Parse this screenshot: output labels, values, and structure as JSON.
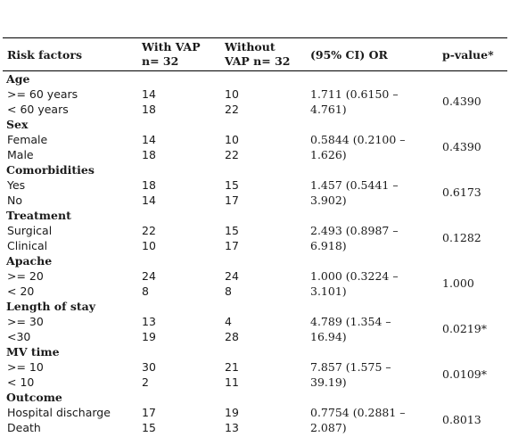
{
  "header": {
    "risk_factors": "Risk factors",
    "with_vap_line1": "With VAP",
    "with_vap_line2": "n= 32",
    "without_vap_line1": "Without",
    "without_vap_line2": "VAP n= 32",
    "ci_or": "(95% CI) OR",
    "p_value": "p-value*"
  },
  "groups": [
    {
      "title": "Age",
      "rows": [
        {
          "label": ">= 60 years",
          "with": "14",
          "without": "10"
        },
        {
          "label": "< 60 years",
          "with": "18",
          "without": "22"
        }
      ],
      "ci_line1": "1.711 (0.6150 –",
      "ci_line2": "4.761)",
      "p": "0.4390"
    },
    {
      "title": "Sex",
      "rows": [
        {
          "label": "Female",
          "with": "14",
          "without": "10"
        },
        {
          "label": "Male",
          "with": "18",
          "without": "22"
        }
      ],
      "ci_line1": "0.5844 (0.2100 –",
      "ci_line2": "1.626)",
      "p": "0.4390"
    },
    {
      "title": "Comorbidities",
      "rows": [
        {
          "label": "Yes",
          "with": "18",
          "without": "15"
        },
        {
          "label": "No",
          "with": "14",
          "without": "17"
        }
      ],
      "ci_line1": "1.457 (0.5441 –",
      "ci_line2": "3.902)",
      "p": "0.6173"
    },
    {
      "title": "Treatment",
      "rows": [
        {
          "label": "Surgical",
          "with": "22",
          "without": "15"
        },
        {
          "label": "Clinical",
          "with": "10",
          "without": "17"
        }
      ],
      "ci_line1": "2.493 (0.8987 –",
      "ci_line2": "6.918)",
      "p": "0.1282"
    },
    {
      "title": "Apache",
      "rows": [
        {
          "label": ">= 20",
          "with": "24",
          "without": "24"
        },
        {
          "label": "< 20",
          "with": "8",
          "without": "8"
        }
      ],
      "ci_line1": "1.000 (0.3224 –",
      "ci_line2": "3.101)",
      "p": "1.000"
    },
    {
      "title": "Length of stay",
      "rows": [
        {
          "label": ">= 30",
          "with": "13",
          "without": "4"
        },
        {
          "label": "<30",
          "with": "19",
          "without": "28"
        }
      ],
      "ci_line1": "4.789 (1.354 –",
      "ci_line2": "16.94)",
      "p": "0.0219*"
    },
    {
      "title": "MV time",
      "rows": [
        {
          "label": ">= 10",
          "with": "30",
          "without": "21"
        },
        {
          "label": "< 10",
          "with": "2",
          "without": "11"
        }
      ],
      "ci_line1": "7.857 (1.575 –",
      "ci_line2": "39.19)",
      "p": "0.0109*"
    },
    {
      "title": "Outcome",
      "rows": [
        {
          "label": "Hospital discharge",
          "with": "17",
          "without": "19"
        },
        {
          "label": "Death",
          "with": "15",
          "without": "13"
        }
      ],
      "ci_line1": "0.7754 (0.2881 –",
      "ci_line2": "2.087)",
      "p": "0.8013"
    }
  ]
}
